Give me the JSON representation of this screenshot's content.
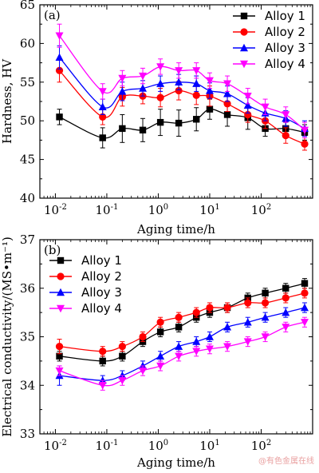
{
  "watermark": "@有色金属在线",
  "chart_data": [
    {
      "type": "line",
      "panel_label": "(a)",
      "xlabel": "Aging time/h",
      "ylabel": "Hardness, HV",
      "xscale": "log",
      "xlim": [
        0.005,
        1000
      ],
      "ylim": [
        40,
        65
      ],
      "yticks": [
        40,
        45,
        50,
        55,
        60,
        65
      ],
      "legend_position": "top-right",
      "x": [
        0.012,
        0.083,
        0.2,
        0.5,
        1.1,
        2.5,
        5.5,
        10,
        22,
        55,
        120,
        300,
        700
      ],
      "series": [
        {
          "name": "Alloy 1",
          "color": "#000000",
          "marker": "square",
          "values": [
            50.5,
            47.8,
            49.0,
            48.8,
            49.8,
            49.7,
            50.2,
            51.5,
            50.8,
            50.4,
            49.0,
            49.0,
            48.5
          ],
          "errors": [
            1.0,
            1.3,
            1.8,
            1.5,
            1.7,
            1.7,
            1.5,
            1.3,
            1.5,
            1.5,
            1.0,
            0.8,
            1.0
          ]
        },
        {
          "name": "Alloy 2",
          "color": "#ff0000",
          "marker": "circle",
          "values": [
            56.5,
            50.5,
            53.1,
            53.2,
            53.0,
            53.9,
            53.3,
            53.2,
            52.2,
            50.8,
            50.0,
            48.1,
            47.0
          ],
          "errors": [
            1.5,
            1.0,
            1.2,
            1.0,
            1.2,
            1.2,
            1.2,
            1.3,
            1.0,
            1.0,
            1.0,
            1.0,
            0.8
          ]
        },
        {
          "name": "Alloy 3",
          "color": "#0000ff",
          "marker": "triangle-up",
          "values": [
            58.2,
            51.8,
            53.8,
            54.2,
            54.8,
            55.0,
            54.8,
            53.9,
            53.5,
            52.0,
            51.0,
            50.3,
            49.0
          ],
          "errors": [
            1.5,
            1.0,
            1.2,
            1.0,
            1.0,
            1.0,
            1.0,
            1.0,
            1.0,
            1.0,
            1.0,
            1.0,
            1.0
          ]
        },
        {
          "name": "Alloy 4",
          "color": "#ff00ff",
          "marker": "triangle-down",
          "values": [
            61.0,
            53.8,
            55.5,
            55.8,
            57.0,
            56.5,
            56.5,
            55.2,
            54.8,
            53.2,
            51.8,
            50.8,
            48.8
          ],
          "errors": [
            1.5,
            1.0,
            1.0,
            1.0,
            1.0,
            1.0,
            1.0,
            1.0,
            1.0,
            1.0,
            1.0,
            1.0,
            1.0
          ]
        }
      ]
    },
    {
      "type": "line",
      "panel_label": "(b)",
      "xlabel": "Aging time/h",
      "ylabel": "Electrical conductivity/(MS•m⁻¹)",
      "xscale": "log",
      "xlim": [
        0.005,
        1000
      ],
      "ylim": [
        33,
        37
      ],
      "yticks": [
        33,
        34,
        35,
        36,
        37
      ],
      "legend_position": "top-left",
      "x": [
        0.012,
        0.083,
        0.2,
        0.5,
        1.1,
        2.5,
        5.5,
        10,
        22,
        55,
        120,
        300,
        700
      ],
      "series": [
        {
          "name": "Alloy 1",
          "color": "#000000",
          "marker": "square",
          "values": [
            34.6,
            34.5,
            34.6,
            34.9,
            35.1,
            35.2,
            35.4,
            35.5,
            35.6,
            35.8,
            35.9,
            36.0,
            36.1
          ],
          "errors": [
            0.1,
            0.1,
            0.1,
            0.1,
            0.1,
            0.1,
            0.1,
            0.1,
            0.1,
            0.1,
            0.1,
            0.1,
            0.1
          ]
        },
        {
          "name": "Alloy 2",
          "color": "#ff0000",
          "marker": "circle",
          "values": [
            34.8,
            34.7,
            34.8,
            35.0,
            35.3,
            35.4,
            35.5,
            35.6,
            35.6,
            35.7,
            35.7,
            35.8,
            35.9
          ],
          "errors": [
            0.15,
            0.1,
            0.1,
            0.1,
            0.1,
            0.1,
            0.1,
            0.1,
            0.1,
            0.1,
            0.1,
            0.1,
            0.1
          ]
        },
        {
          "name": "Alloy 3",
          "color": "#0000ff",
          "marker": "triangle-up",
          "values": [
            34.2,
            34.1,
            34.2,
            34.4,
            34.6,
            34.8,
            34.9,
            35.0,
            35.2,
            35.3,
            35.4,
            35.5,
            35.6
          ],
          "errors": [
            0.2,
            0.1,
            0.1,
            0.1,
            0.1,
            0.1,
            0.1,
            0.1,
            0.1,
            0.1,
            0.1,
            0.1,
            0.1
          ]
        },
        {
          "name": "Alloy 4",
          "color": "#ff00ff",
          "marker": "triangle-down",
          "values": [
            34.3,
            34.0,
            34.1,
            34.3,
            34.4,
            34.6,
            34.7,
            34.75,
            34.8,
            34.9,
            35.0,
            35.2,
            35.3
          ],
          "errors": [
            0.1,
            0.1,
            0.1,
            0.1,
            0.1,
            0.1,
            0.1,
            0.1,
            0.1,
            0.1,
            0.1,
            0.1,
            0.1
          ]
        }
      ]
    }
  ]
}
